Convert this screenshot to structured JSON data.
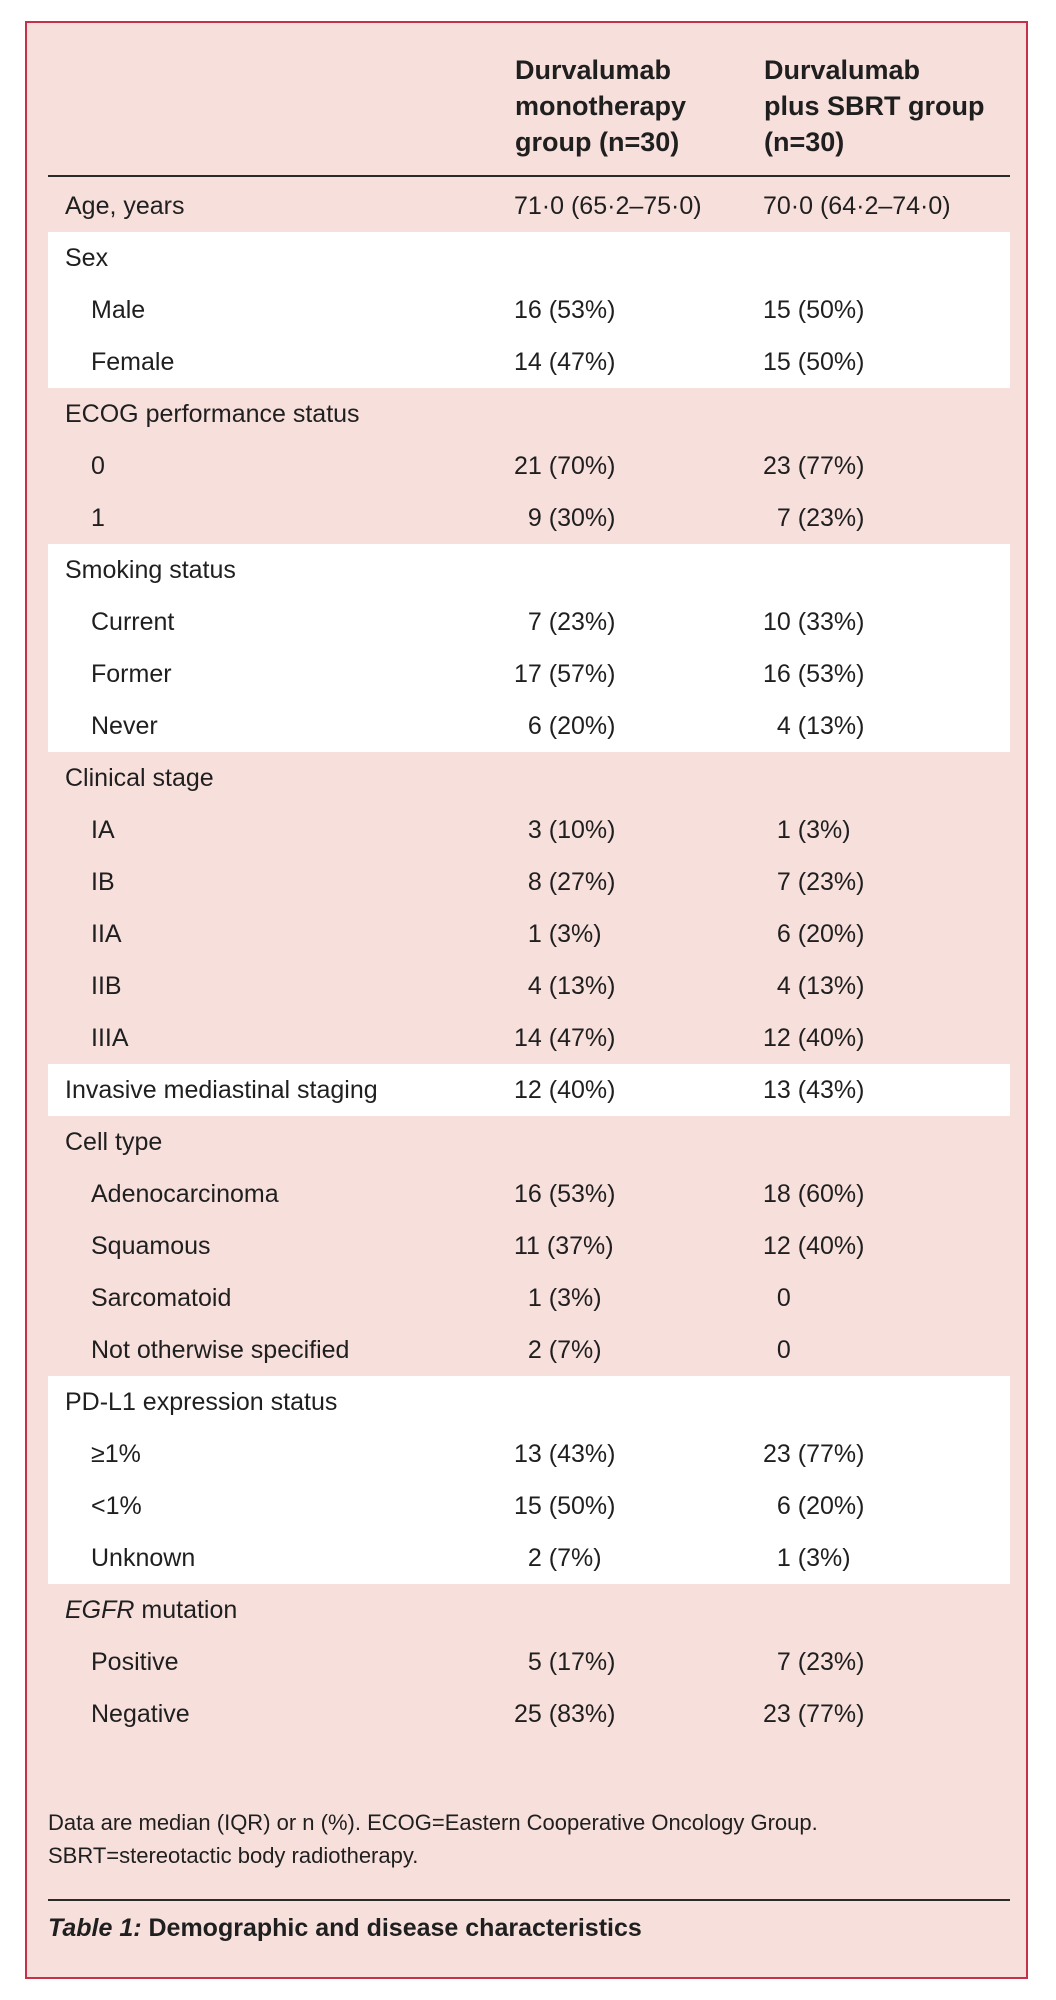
{
  "table": {
    "headers": {
      "col1": [
        "Durvalumab",
        "monotherapy",
        "group (n=30)"
      ],
      "col2": [
        "Durvalumab",
        "plus SBRT group",
        "(n=30)"
      ]
    },
    "rows": [
      {
        "label": "Age, years",
        "v1": "71·0 (65·2–75·0)",
        "v2": "70·0 (64·2–74·0)",
        "kind": "top",
        "shade": "pink"
      },
      {
        "label": "Sex",
        "v1": "",
        "v2": "",
        "kind": "top",
        "shade": "white"
      },
      {
        "label": "Male",
        "v1": "16 (53%)",
        "v2": "15 (50%)",
        "kind": "sub",
        "shade": "white"
      },
      {
        "label": "Female",
        "v1": "14 (47%)",
        "v2": "15 (50%)",
        "kind": "sub",
        "shade": "white"
      },
      {
        "label": "ECOG performance status",
        "v1": "",
        "v2": "",
        "kind": "top",
        "shade": "pink"
      },
      {
        "label": "0",
        "v1": "21 (70%)",
        "v2": "23 (77%)",
        "kind": "sub",
        "shade": "pink"
      },
      {
        "label": "1",
        "v1": "  9 (30%)",
        "v2": "  7 (23%)",
        "kind": "sub",
        "shade": "pink"
      },
      {
        "label": "Smoking status",
        "v1": "",
        "v2": "",
        "kind": "top",
        "shade": "white"
      },
      {
        "label": "Current",
        "v1": "  7 (23%)",
        "v2": "10 (33%)",
        "kind": "sub",
        "shade": "white"
      },
      {
        "label": "Former",
        "v1": "17 (57%)",
        "v2": "16 (53%)",
        "kind": "sub",
        "shade": "white"
      },
      {
        "label": "Never",
        "v1": "  6 (20%)",
        "v2": "  4 (13%)",
        "kind": "sub",
        "shade": "white"
      },
      {
        "label": "Clinical stage",
        "v1": "",
        "v2": "",
        "kind": "top",
        "shade": "pink"
      },
      {
        "label": "IA",
        "v1": "  3 (10%)",
        "v2": "  1 (3%)",
        "kind": "sub",
        "shade": "pink"
      },
      {
        "label": "IB",
        "v1": "  8 (27%)",
        "v2": "  7 (23%)",
        "kind": "sub",
        "shade": "pink"
      },
      {
        "label": "IIA",
        "v1": "  1 (3%)",
        "v2": "  6 (20%)",
        "kind": "sub",
        "shade": "pink"
      },
      {
        "label": "IIB",
        "v1": "  4 (13%)",
        "v2": "  4 (13%)",
        "kind": "sub",
        "shade": "pink"
      },
      {
        "label": "IIIA",
        "v1": "14 (47%)",
        "v2": "12 (40%)",
        "kind": "sub",
        "shade": "pink"
      },
      {
        "label": "Invasive mediastinal staging",
        "v1": "12 (40%)",
        "v2": "13 (43%)",
        "kind": "top",
        "shade": "white"
      },
      {
        "label": "Cell type",
        "v1": "",
        "v2": "",
        "kind": "top",
        "shade": "pink"
      },
      {
        "label": "Adenocarcinoma",
        "v1": "16 (53%)",
        "v2": "18 (60%)",
        "kind": "sub",
        "shade": "pink"
      },
      {
        "label": "Squamous",
        "v1": "11 (37%)",
        "v2": "12 (40%)",
        "kind": "sub",
        "shade": "pink"
      },
      {
        "label": "Sarcomatoid",
        "v1": "  1 (3%)",
        "v2": "  0",
        "kind": "sub",
        "shade": "pink"
      },
      {
        "label": "Not otherwise specified",
        "v1": "  2 (7%)",
        "v2": "  0",
        "kind": "sub",
        "shade": "pink"
      },
      {
        "label": "PD-L1 expression status",
        "v1": "",
        "v2": "",
        "kind": "top",
        "shade": "white"
      },
      {
        "label": "≥1%",
        "v1": "13 (43%)",
        "v2": "23 (77%)",
        "kind": "sub",
        "shade": "white"
      },
      {
        "label": "<1%",
        "v1": "15 (50%)",
        "v2": "  6 (20%)",
        "kind": "sub",
        "shade": "white"
      },
      {
        "label": "Unknown",
        "v1": "  2 (7%)",
        "v2": "  1 (3%)",
        "kind": "sub",
        "shade": "white"
      },
      {
        "label": "EGFR mutation",
        "v1": "",
        "v2": "",
        "kind": "top",
        "shade": "pink",
        "italic_prefix": "EGFR"
      },
      {
        "label": "Positive",
        "v1": "  5 (17%)",
        "v2": "  7 (23%)",
        "kind": "sub",
        "shade": "pink"
      },
      {
        "label": "Negative",
        "v1": "25 (83%)",
        "v2": "23 (77%)",
        "kind": "sub",
        "shade": "pink"
      }
    ]
  },
  "footnote": [
    "Data are median (IQR) or n (%). ECOG=Eastern Cooperative Oncology Group.",
    "SBRT=stereotactic body radiotherapy."
  ],
  "caption": {
    "label": "Table 1:",
    "text": " Demographic and disease characteristics"
  },
  "colors": {
    "panel_bg": "#f7dfdc",
    "panel_border": "#c6314a",
    "white_band": "#ffffff",
    "text": "#1f1f1f"
  }
}
